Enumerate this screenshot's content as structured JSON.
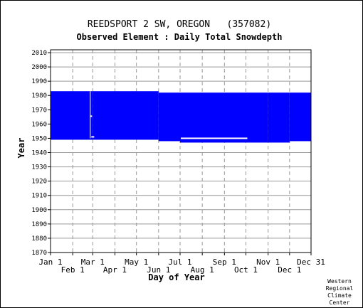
{
  "chart_data": {
    "type": "bar",
    "title": "REEDSPORT 2 SW, OREGON   (357082)",
    "subtitle": "Observed Element : Daily Total Snowdepth",
    "xlabel": "Day of Year",
    "ylabel": "Year",
    "xlim": [
      1,
      365
    ],
    "ylim": [
      1870,
      2012
    ],
    "grid": true,
    "bar_color": "#0000ff",
    "gap_color": "#ffffff",
    "x_ticks_top": [
      {
        "day": 1,
        "label": "Jan 1"
      },
      {
        "day": 60,
        "label": "Mar 1"
      },
      {
        "day": 121,
        "label": "May 1"
      },
      {
        "day": 182,
        "label": "Jul 1"
      },
      {
        "day": 244,
        "label": "Sep 1"
      },
      {
        "day": 305,
        "label": "Nov 1"
      },
      {
        "day": 365,
        "label": "Dec 31"
      }
    ],
    "x_ticks_bottom": [
      {
        "day": 32,
        "label": "Feb 1"
      },
      {
        "day": 91,
        "label": "Apr 1"
      },
      {
        "day": 152,
        "label": "Jun 1"
      },
      {
        "day": 213,
        "label": "Aug 1"
      },
      {
        "day": 274,
        "label": "Oct 1"
      },
      {
        "day": 335,
        "label": "Dec 1"
      }
    ],
    "y_ticks": [
      1870,
      1880,
      1890,
      1900,
      1910,
      1920,
      1930,
      1940,
      1950,
      1960,
      1970,
      1980,
      1990,
      2000,
      2010
    ],
    "observed_periods": [
      {
        "day_start": 1,
        "day_end": 60,
        "year_start": 1949,
        "year_end": 1983
      },
      {
        "day_start": 60,
        "day_end": 152,
        "year_start": 1949,
        "year_end": 1983
      },
      {
        "day_start": 152,
        "day_end": 182,
        "year_start": 1948,
        "year_end": 1982
      },
      {
        "day_start": 182,
        "day_end": 305,
        "year_start": 1947,
        "year_end": 1982
      },
      {
        "day_start": 305,
        "day_end": 335,
        "year_start": 1947,
        "year_end": 1982
      },
      {
        "day_start": 335,
        "day_end": 365,
        "year_start": 1948,
        "year_end": 1982
      }
    ],
    "missing_segments": [
      {
        "day_start": 56,
        "day_end": 57,
        "year_start": 1950,
        "year_end": 1983
      },
      {
        "day_start": 58,
        "day_end": 62,
        "year_start": 1950.5,
        "year_end": 1951.5
      },
      {
        "day_start": 57,
        "day_end": 59,
        "year_start": 1965,
        "year_end": 1966
      },
      {
        "day_start": 183,
        "day_end": 276,
        "year_start": 1949.5,
        "year_end": 1950.5
      }
    ]
  },
  "credit": {
    "line1": "Western",
    "line2": "Regional",
    "line3": "Climate",
    "line4": "Center"
  }
}
